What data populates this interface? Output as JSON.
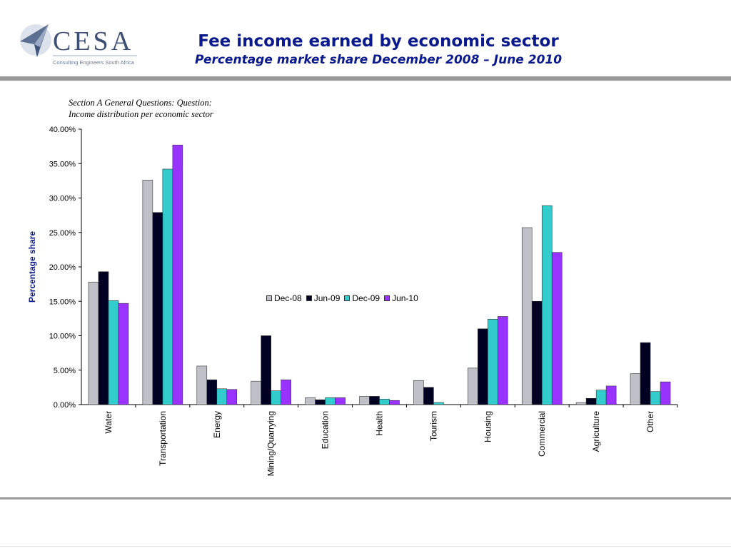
{
  "header": {
    "logo_text": "CESA",
    "logo_tagline": "Consulting Engineers South Africa",
    "title": "Fee income earned by economic sector",
    "subtitle": "Percentage market share  December 2008 – June 2010"
  },
  "caption": {
    "line1": "Section A General Questions: Question:",
    "line2": "Income distribution per economic sector"
  },
  "colors": {
    "title": "#0a1a8c",
    "Dec-08": "#c0c0c8",
    "Jun-09": "#000022",
    "Dec-09": "#33cccc",
    "Jun-10": "#9933ff"
  },
  "chart_data": {
    "type": "bar",
    "title": "",
    "xlabel": "",
    "ylabel": "Percentage share",
    "ylim": [
      0,
      40
    ],
    "yticks": [
      "0.00%",
      "5.00%",
      "10.00%",
      "15.00%",
      "20.00%",
      "25.00%",
      "30.00%",
      "35.00%",
      "40.00%"
    ],
    "legend_position": "center",
    "grid": false,
    "categories": [
      "Water",
      "Transportation",
      "Energy",
      "Mining/Quarrying",
      "Education",
      "Health",
      "Tourism",
      "Housing",
      "Commercial",
      "Agriculture",
      "Other"
    ],
    "series": [
      {
        "name": "Dec-08",
        "values": [
          17.8,
          32.6,
          5.6,
          3.4,
          1.0,
          1.2,
          3.5,
          5.3,
          25.7,
          0.3,
          4.5
        ]
      },
      {
        "name": "Jun-09",
        "values": [
          19.3,
          27.9,
          3.6,
          10.0,
          0.7,
          1.2,
          2.5,
          11.0,
          15.0,
          0.9,
          9.0
        ]
      },
      {
        "name": "Dec-09",
        "values": [
          15.1,
          34.2,
          2.3,
          2.0,
          1.0,
          0.8,
          0.3,
          12.4,
          28.9,
          2.1,
          1.9
        ]
      },
      {
        "name": "Jun-10",
        "values": [
          14.7,
          37.7,
          2.2,
          3.6,
          1.0,
          0.6,
          0.0,
          12.8,
          22.1,
          2.7,
          3.3
        ]
      }
    ]
  }
}
